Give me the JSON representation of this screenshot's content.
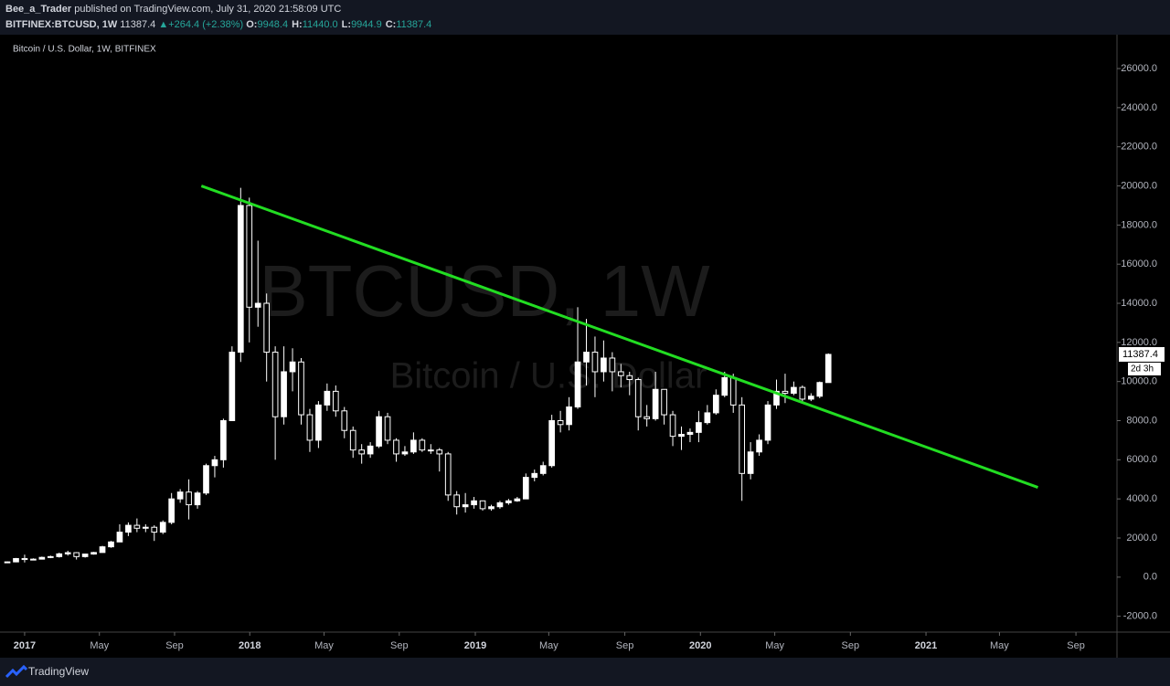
{
  "header": {
    "author": "Bee_a_Trader",
    "published": "published on TradingView.com, July 31, 2020 21:58:09 UTC",
    "symbol": "BITFINEX:BTCUSD, 1W",
    "last": "11387.4",
    "arrow": "▲",
    "change": "+264.4 (+2.38%)",
    "ohlc": [
      {
        "label": "O:",
        "value": "9948.4"
      },
      {
        "label": "H:",
        "value": "11440.0"
      },
      {
        "label": "L:",
        "value": "9944.9"
      },
      {
        "label": "C:",
        "value": "11387.4"
      }
    ]
  },
  "footer": {
    "brand": "TradingView"
  },
  "chart_data": {
    "type": "candlestick",
    "legend": "Bitcoin / U.S. Dollar, 1W, BITFINEX",
    "watermark": "BTCUSD, 1W",
    "watermark_sub": "Bitcoin / U.S. Dollar",
    "up_color": "#ffffff",
    "down_color": "#000000",
    "wick_color": "#ffffff",
    "grid": false,
    "xlim": [
      -5.7,
      252.8
    ],
    "ylim": [
      -2810,
      27730
    ],
    "xticks": [
      {
        "value": 0,
        "label": "2017"
      },
      {
        "value": 17.3,
        "label": "May"
      },
      {
        "value": 34.7,
        "label": "Sep"
      },
      {
        "value": 52.1,
        "label": "2018"
      },
      {
        "value": 69.3,
        "label": "May"
      },
      {
        "value": 86.7,
        "label": "Sep"
      },
      {
        "value": 104.3,
        "label": "2019"
      },
      {
        "value": 121.3,
        "label": "May"
      },
      {
        "value": 138.9,
        "label": "Sep"
      },
      {
        "value": 156.4,
        "label": "2020"
      },
      {
        "value": 173.6,
        "label": "May"
      },
      {
        "value": 191.1,
        "label": "Sep"
      },
      {
        "value": 208.6,
        "label": "2021"
      },
      {
        "value": 225.6,
        "label": "May"
      },
      {
        "value": 243.3,
        "label": "Sep"
      }
    ],
    "yticks": [
      {
        "value": -2000,
        "label": "-2000.0"
      },
      {
        "value": 0,
        "label": "0.0"
      },
      {
        "value": 2000,
        "label": "2000.0"
      },
      {
        "value": 4000,
        "label": "4000.0"
      },
      {
        "value": 6000,
        "label": "6000.0"
      },
      {
        "value": 8000,
        "label": "8000.0"
      },
      {
        "value": 10000,
        "label": "10000.0"
      },
      {
        "value": 12000,
        "label": "12000.0"
      },
      {
        "value": 14000,
        "label": "14000.0"
      },
      {
        "value": 16000,
        "label": "16000.0"
      },
      {
        "value": 18000,
        "label": "18000.0"
      },
      {
        "value": 20000,
        "label": "20000.0"
      },
      {
        "value": 22000,
        "label": "22000.0"
      },
      {
        "value": 24000,
        "label": "24000.0"
      },
      {
        "value": 26000,
        "label": "26000.0"
      }
    ],
    "price_tag": {
      "value": 11387.4,
      "label": "11387.4",
      "countdown": "2d 3h"
    },
    "trendline": {
      "x": [
        40.9,
        234.5
      ],
      "values": [
        20000,
        4590
      ],
      "color": "#22dd22"
    },
    "x": [
      -4,
      -2,
      0,
      2,
      4,
      6,
      8,
      10,
      12,
      14,
      16,
      18,
      20,
      22,
      24,
      26,
      28,
      30,
      32,
      34,
      36,
      38,
      40,
      42,
      44,
      46,
      48,
      50,
      52,
      54,
      56,
      58,
      60,
      62,
      64,
      66,
      68,
      70,
      72,
      74,
      76,
      78,
      80,
      82,
      84,
      86,
      88,
      90,
      92,
      94,
      96,
      98,
      100,
      102,
      104,
      106,
      108,
      110,
      112,
      114,
      116,
      118,
      120,
      122,
      124,
      126,
      128,
      130,
      132,
      134,
      136,
      138,
      140,
      142,
      144,
      146,
      148,
      150,
      152,
      154,
      156,
      158,
      160,
      162,
      164,
      166,
      168,
      170,
      172,
      174,
      176,
      178,
      180,
      182,
      184,
      186
    ],
    "ohlc": [
      [
        740,
        800,
        730,
        780
      ],
      [
        780,
        980,
        760,
        950
      ],
      [
        950,
        1150,
        750,
        900
      ],
      [
        900,
        960,
        870,
        920
      ],
      [
        920,
        1050,
        900,
        1010
      ],
      [
        1010,
        1100,
        970,
        1050
      ],
      [
        1050,
        1250,
        1000,
        1190
      ],
      [
        1190,
        1350,
        1100,
        1250
      ],
      [
        1250,
        1280,
        900,
        1050
      ],
      [
        1050,
        1200,
        1000,
        1180
      ],
      [
        1180,
        1290,
        1150,
        1260
      ],
      [
        1260,
        1600,
        1250,
        1550
      ],
      [
        1550,
        1850,
        1500,
        1800
      ],
      [
        1800,
        2700,
        1800,
        2300
      ],
      [
        2300,
        2800,
        2100,
        2650
      ],
      [
        2650,
        3000,
        2300,
        2500
      ],
      [
        2500,
        2700,
        2300,
        2550
      ],
      [
        2550,
        2650,
        1850,
        2300
      ],
      [
        2300,
        2900,
        2200,
        2800
      ],
      [
        2800,
        4300,
        2700,
        4000
      ],
      [
        4000,
        4500,
        3800,
        4350
      ],
      [
        4350,
        5000,
        2950,
        3700
      ],
      [
        3700,
        4400,
        3500,
        4300
      ],
      [
        4300,
        5800,
        4200,
        5700
      ],
      [
        5700,
        6200,
        5100,
        6000
      ],
      [
        6000,
        8100,
        5600,
        8000
      ],
      [
        8000,
        11800,
        8000,
        11500
      ],
      [
        11500,
        19900,
        11000,
        19000
      ],
      [
        19000,
        19400,
        12000,
        13800
      ],
      [
        13800,
        17200,
        12800,
        14000
      ],
      [
        14000,
        14500,
        10000,
        11500
      ],
      [
        11500,
        11800,
        6000,
        8200
      ],
      [
        8200,
        11800,
        7800,
        10500
      ],
      [
        10500,
        11700,
        9500,
        11000
      ],
      [
        11000,
        11200,
        7800,
        8300
      ],
      [
        8300,
        8600,
        6400,
        7000
      ],
      [
        7000,
        9000,
        6600,
        8800
      ],
      [
        8800,
        9900,
        8500,
        9500
      ],
      [
        9500,
        9800,
        8200,
        8500
      ],
      [
        8500,
        8700,
        7100,
        7500
      ],
      [
        7500,
        7700,
        6100,
        6500
      ],
      [
        6500,
        6800,
        5800,
        6300
      ],
      [
        6300,
        6900,
        6100,
        6700
      ],
      [
        6700,
        8500,
        6600,
        8200
      ],
      [
        8200,
        8400,
        6800,
        7000
      ],
      [
        7000,
        7100,
        5900,
        6300
      ],
      [
        6300,
        6700,
        6200,
        6400
      ],
      [
        6400,
        7400,
        6300,
        7000
      ],
      [
        7000,
        7100,
        6400,
        6500
      ],
      [
        6500,
        6800,
        6300,
        6500
      ],
      [
        6500,
        6600,
        5400,
        6300
      ],
      [
        6300,
        6400,
        3900,
        4200
      ],
      [
        4200,
        4400,
        3200,
        3600
      ],
      [
        3600,
        4300,
        3300,
        3700
      ],
      [
        3700,
        4100,
        3500,
        3900
      ],
      [
        3900,
        3900,
        3400,
        3500
      ],
      [
        3500,
        3700,
        3400,
        3600
      ],
      [
        3600,
        3900,
        3500,
        3800
      ],
      [
        3800,
        4000,
        3700,
        3900
      ],
      [
        3900,
        4100,
        3850,
        4000
      ],
      [
        4000,
        5300,
        4000,
        5100
      ],
      [
        5100,
        5500,
        4900,
        5300
      ],
      [
        5300,
        5900,
        5200,
        5700
      ],
      [
        5700,
        8300,
        5600,
        8000
      ],
      [
        8000,
        8500,
        7400,
        7800
      ],
      [
        7800,
        9200,
        7500,
        8700
      ],
      [
        8700,
        13800,
        8600,
        11000
      ],
      [
        11000,
        13200,
        9800,
        11500
      ],
      [
        11500,
        12300,
        9200,
        10500
      ],
      [
        10500,
        12100,
        10000,
        11200
      ],
      [
        11200,
        11500,
        9500,
        10500
      ],
      [
        10500,
        10900,
        9700,
        10300
      ],
      [
        10300,
        10500,
        9300,
        10100
      ],
      [
        10100,
        10200,
        7500,
        8200
      ],
      [
        8200,
        8800,
        7700,
        8100
      ],
      [
        8100,
        10500,
        8000,
        9600
      ],
      [
        9600,
        9600,
        7800,
        8300
      ],
      [
        8300,
        8500,
        6700,
        7200
      ],
      [
        7200,
        7700,
        6500,
        7300
      ],
      [
        7300,
        7600,
        6900,
        7400
      ],
      [
        7400,
        8500,
        6900,
        7900
      ],
      [
        7900,
        8800,
        7800,
        8400
      ],
      [
        8400,
        9600,
        8300,
        9300
      ],
      [
        9300,
        10500,
        9200,
        10200
      ],
      [
        10200,
        10400,
        8400,
        8800
      ],
      [
        8800,
        9200,
        3900,
        5300
      ],
      [
        5300,
        6900,
        5000,
        6400
      ],
      [
        6400,
        7300,
        6200,
        7000
      ],
      [
        7000,
        9000,
        6800,
        8800
      ],
      [
        8800,
        10100,
        8600,
        9500
      ],
      [
        9500,
        10400,
        8900,
        9400
      ],
      [
        9400,
        10000,
        9300,
        9700
      ],
      [
        9700,
        9800,
        8900,
        9100
      ],
      [
        9100,
        9400,
        9000,
        9250
      ],
      [
        9250,
        10000,
        9150,
        9950
      ],
      [
        9948.4,
        11440,
        9944.9,
        11387.4
      ]
    ]
  }
}
